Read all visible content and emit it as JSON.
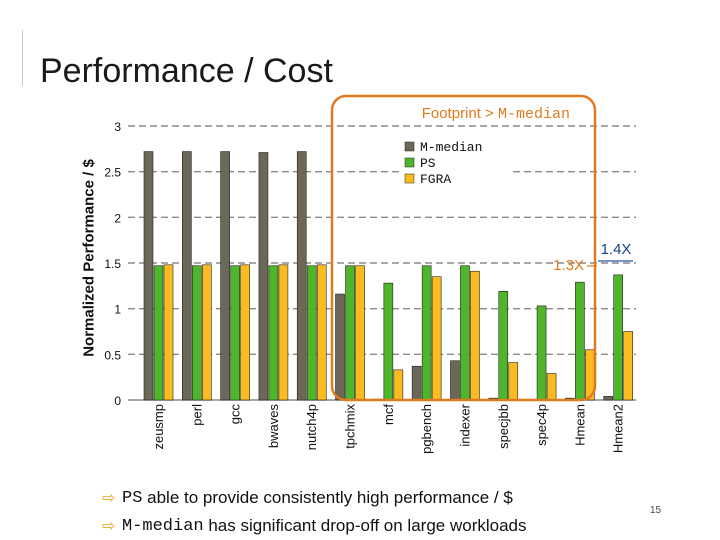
{
  "title": "Performance / Cost",
  "colors": {
    "m_median": "#6b6857",
    "ps": "#4fb62b",
    "fgra": "#fbbb21",
    "highlight": "#e07a1f",
    "arrow": "#f0a020",
    "grid": "#8a8a8a"
  },
  "chart_data": {
    "type": "bar",
    "ylabel": "Normalized Performance / $",
    "ylim": [
      0,
      3
    ],
    "yticks": [
      "0",
      "0.5",
      "1",
      "1.5",
      "2",
      "2.5",
      "3"
    ],
    "grid": true,
    "legend_position": "top-right",
    "categories": [
      "zeusmp",
      "perl",
      "gcc",
      "bwaves",
      "nutch4p",
      "tpchmix",
      "mcf",
      "pgbench",
      "indexer",
      "specjbb",
      "spec4p",
      "Hmean",
      "Hmean2"
    ],
    "series": [
      {
        "name": "M-median",
        "values": [
          2.72,
          2.72,
          2.72,
          2.71,
          2.72,
          1.16,
          0.01,
          0.37,
          0.43,
          0.02,
          0.0,
          0.02,
          0.04
        ]
      },
      {
        "name": "PS",
        "values": [
          1.47,
          1.47,
          1.47,
          1.47,
          1.47,
          1.47,
          1.28,
          1.47,
          1.47,
          1.19,
          1.03,
          1.29,
          1.37
        ]
      },
      {
        "name": "FGRA",
        "values": [
          1.48,
          1.48,
          1.48,
          1.48,
          1.48,
          1.47,
          0.33,
          1.35,
          1.41,
          0.41,
          0.29,
          0.55,
          0.75
        ]
      }
    ],
    "annotations": [
      "1.3X",
      "1.4X"
    ],
    "highlight_box": {
      "label_prefix": "Footprint > ",
      "label_mono": "M-median"
    }
  },
  "bullets": [
    {
      "mono": "PS",
      "text": " able to provide consistently high performance / $"
    },
    {
      "mono": "M-median",
      "text": " has significant drop-off on large workloads"
    }
  ],
  "page_number": "15"
}
